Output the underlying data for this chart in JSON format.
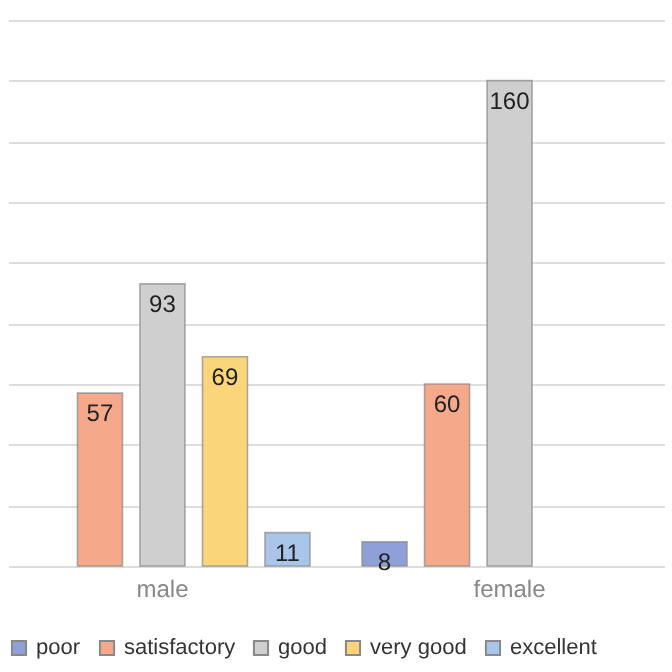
{
  "chart_data": {
    "type": "bar",
    "categories": [
      "male",
      "female"
    ],
    "series": [
      {
        "name": "poor",
        "color": "#8fa0d8",
        "values": [
          null,
          8
        ]
      },
      {
        "name": "satisfactory",
        "color": "#f5a88a",
        "values": [
          57,
          60
        ]
      },
      {
        "name": "good",
        "color": "#cfcfcf",
        "values": [
          93,
          160
        ]
      },
      {
        "name": "very good",
        "color": "#fbd57a",
        "values": [
          69,
          null
        ]
      },
      {
        "name": "excellent",
        "color": "#a9c6ea",
        "values": [
          11,
          null
        ]
      }
    ],
    "yticks": [
      {
        "value": 0,
        "label": null
      },
      {
        "value": 20,
        "label": null
      },
      {
        "value": 40,
        "label": null
      },
      {
        "value": 60,
        "label": null
      },
      {
        "value": 80,
        "label": null
      },
      {
        "value": 100,
        "label": null
      },
      {
        "value": 120,
        "label": null
      },
      {
        "value": 140,
        "label": null
      },
      {
        "value": 160,
        "label": null
      },
      {
        "value": 180,
        "label": null
      }
    ],
    "grid": "y",
    "tick_labels": "x",
    "legend": "bottom",
    "data_labels": true
  }
}
